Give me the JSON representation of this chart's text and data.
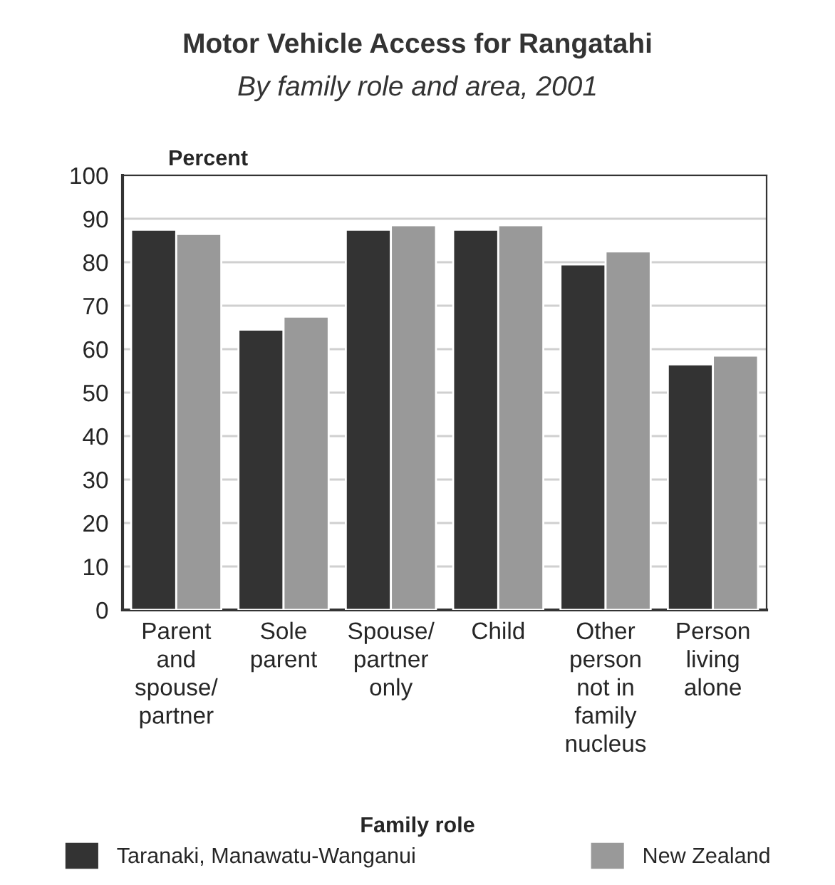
{
  "chart_data": {
    "type": "bar",
    "title": "Motor Vehicle Access for Rangatahi",
    "subtitle": "By family role and area, 2001",
    "xlabel": "Family role",
    "ylabel": "Percent",
    "categories": [
      "Parent\nand\nspouse/\npartner",
      "Sole\nparent",
      "Spouse/\npartner\nonly",
      "Child",
      "Other\nperson\nnot in\nfamily\nnucleus",
      "Person\nliving\nalone"
    ],
    "series": [
      {
        "name": "Taranaki, Manawatu-Wanganui",
        "color": "#333333",
        "values": [
          87.5,
          64.5,
          87.5,
          87.5,
          79.5,
          56.5
        ]
      },
      {
        "name": "New Zealand",
        "color": "#999999",
        "values": [
          86.5,
          67.5,
          88.5,
          88.5,
          82.5,
          58.5
        ]
      }
    ],
    "ylim": [
      0,
      100
    ],
    "yticks": [
      0,
      10,
      20,
      30,
      40,
      50,
      60,
      70,
      80,
      90,
      100
    ],
    "grid": "y",
    "legend": "bottom"
  }
}
